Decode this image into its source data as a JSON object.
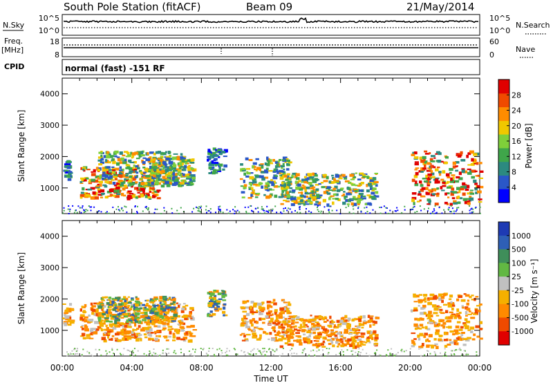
{
  "header": {
    "station": "South Pole Station (fitACF)",
    "beam": "Beam 09",
    "date": "21/May/2014"
  },
  "top_panels": {
    "nsky_label": "N.Sky",
    "nsky_ticks": [
      "10^5",
      "10^0"
    ],
    "nsearch_label": "N.Search",
    "nsearch_ticks": [
      "10^5",
      "10^0"
    ],
    "freq_label": "Freq.",
    "freq_unit": "[MHz]",
    "freq_ticks": [
      "18",
      "8"
    ],
    "nave_label": "Nave",
    "nave_ticks": [
      "60",
      "0"
    ],
    "cpid_label": "CPID",
    "cpid_text": "normal (fast) -151 RF"
  },
  "chart_data": [
    {
      "type": "heatmap",
      "title": "",
      "xlabel": "Time UT",
      "ylabel": "Slant Range [km]",
      "x_ticks": [
        "00:00",
        "04:00",
        "08:00",
        "12:00",
        "16:00",
        "20:00",
        "00:00"
      ],
      "xlim_hours": [
        0,
        24
      ],
      "y_ticks": [
        1000,
        2000,
        3000,
        4000
      ],
      "ylim_km": [
        180,
        4500
      ],
      "colorbar_label": "Power [dB]",
      "colorbar_ticks": [
        "28",
        "24",
        "20",
        "16",
        "12",
        "8",
        "4"
      ],
      "colorbar_range": [
        0,
        32
      ],
      "colorbar_colors": [
        "#0000ff",
        "#2a57c8",
        "#2c8a80",
        "#3fa64a",
        "#7fcf3a",
        "#f0c800",
        "#ff8c00",
        "#f04a00",
        "#e00000"
      ],
      "regions": [
        {
          "t": [
            0.0,
            0.5
          ],
          "r": [
            1300,
            1900
          ],
          "level": "low"
        },
        {
          "t": [
            1.0,
            5.5
          ],
          "r": [
            700,
            1700
          ],
          "level": "high"
        },
        {
          "t": [
            2.0,
            7.0
          ],
          "r": [
            1100,
            2200
          ],
          "level": "mid"
        },
        {
          "t": [
            5.0,
            7.5
          ],
          "r": [
            1100,
            2000
          ],
          "level": "mid"
        },
        {
          "t": [
            8.3,
            9.3
          ],
          "r": [
            1500,
            2300
          ],
          "level": "low"
        },
        {
          "t": [
            10.2,
            13.0
          ],
          "r": [
            700,
            2000
          ],
          "level": "mid"
        },
        {
          "t": [
            12.5,
            18.0
          ],
          "r": [
            500,
            1500
          ],
          "level": "mid"
        },
        {
          "t": [
            20.0,
            24.0
          ],
          "r": [
            500,
            2200
          ],
          "level": "high"
        }
      ]
    },
    {
      "type": "heatmap",
      "title": "",
      "xlabel": "Time UT",
      "ylabel": "Slant Range [km]",
      "x_ticks": [
        "00:00",
        "04:00",
        "08:00",
        "12:00",
        "16:00",
        "20:00",
        "00:00"
      ],
      "xlim_hours": [
        0,
        24
      ],
      "y_ticks": [
        1000,
        2000,
        3000,
        4000
      ],
      "ylim_km": [
        180,
        4500
      ],
      "colorbar_label": "Velocity [m s⁻¹]",
      "colorbar_ticks": [
        "1000",
        "500",
        "100",
        "25",
        "-25",
        "-100",
        "-500",
        "-1000"
      ],
      "colorbar_colors": [
        "#1e3ab4",
        "#2e5fb6",
        "#3f8e5a",
        "#62b843",
        "#c0c0c0",
        "#f5b000",
        "#ff8a00",
        "#f04a00",
        "#e00000"
      ],
      "regions": [
        {
          "t": [
            0.0,
            0.5
          ],
          "r": [
            1200,
            1900
          ],
          "level": "orange"
        },
        {
          "t": [
            1.0,
            7.5
          ],
          "r": [
            700,
            1900
          ],
          "level": "orange"
        },
        {
          "t": [
            2.0,
            6.5
          ],
          "r": [
            1300,
            2100
          ],
          "level": "green"
        },
        {
          "t": [
            8.3,
            9.3
          ],
          "r": [
            1500,
            2300
          ],
          "level": "green"
        },
        {
          "t": [
            10.2,
            13.0
          ],
          "r": [
            700,
            2000
          ],
          "level": "orange"
        },
        {
          "t": [
            12.5,
            18.0
          ],
          "r": [
            500,
            1500
          ],
          "level": "orange"
        },
        {
          "t": [
            20.0,
            24.0
          ],
          "r": [
            500,
            2200
          ],
          "level": "orange"
        }
      ]
    }
  ]
}
